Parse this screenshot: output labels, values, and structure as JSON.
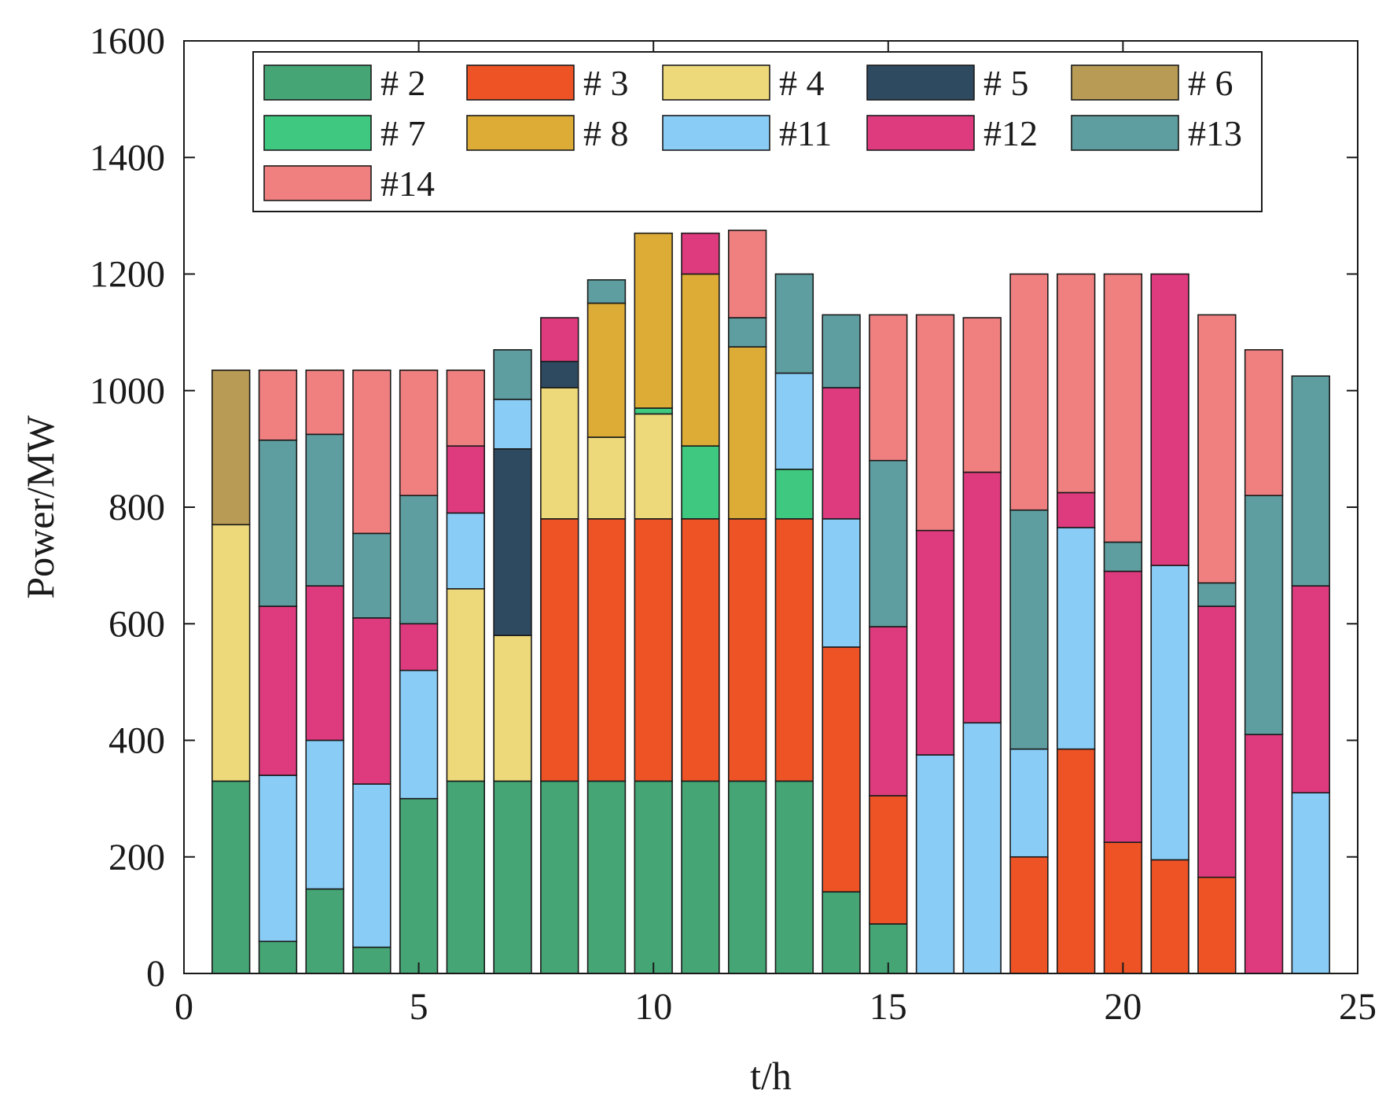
{
  "chart_data": {
    "type": "bar",
    "stacked": true,
    "xlabel": "t/h",
    "ylabel": "Power/MW",
    "xlim": [
      0,
      25
    ],
    "ylim": [
      0,
      1600
    ],
    "xticks": [
      0,
      5,
      10,
      15,
      20,
      25
    ],
    "yticks": [
      0,
      200,
      400,
      600,
      800,
      1000,
      1200,
      1400,
      1600
    ],
    "grid": false,
    "legend_position": "top",
    "x": [
      1,
      2,
      3,
      4,
      5,
      6,
      7,
      8,
      9,
      10,
      11,
      12,
      13,
      14,
      15,
      16,
      17,
      18,
      19,
      20,
      21,
      22,
      23,
      24
    ],
    "series": [
      {
        "name": "# 2",
        "color": "#45A575",
        "values": [
          330,
          55,
          145,
          45,
          300,
          330,
          330,
          330,
          330,
          330,
          330,
          330,
          330,
          140,
          85,
          0,
          0,
          0,
          0,
          0,
          0,
          0,
          0,
          0
        ]
      },
      {
        "name": "# 3",
        "color": "#EE5326",
        "values": [
          0,
          0,
          0,
          0,
          0,
          0,
          0,
          450,
          450,
          450,
          450,
          450,
          450,
          420,
          220,
          0,
          0,
          200,
          385,
          225,
          195,
          165,
          0,
          0
        ]
      },
      {
        "name": "# 4",
        "color": "#EDD87A",
        "values": [
          440,
          0,
          0,
          0,
          0,
          330,
          250,
          225,
          140,
          180,
          0,
          0,
          0,
          0,
          0,
          0,
          0,
          0,
          0,
          0,
          0,
          0,
          0,
          0
        ]
      },
      {
        "name": "# 5",
        "color": "#2E4A60",
        "values": [
          0,
          0,
          0,
          0,
          0,
          0,
          320,
          45,
          0,
          0,
          0,
          0,
          0,
          0,
          0,
          0,
          0,
          0,
          0,
          0,
          0,
          0,
          0,
          0
        ]
      },
      {
        "name": "# 6",
        "color": "#B89B54",
        "values": [
          265,
          0,
          0,
          0,
          0,
          0,
          0,
          0,
          0,
          0,
          0,
          0,
          0,
          0,
          0,
          0,
          0,
          0,
          0,
          0,
          0,
          0,
          0,
          0
        ]
      },
      {
        "name": "# 7",
        "color": "#3FC87F",
        "values": [
          0,
          0,
          0,
          0,
          0,
          0,
          0,
          0,
          0,
          10,
          125,
          0,
          85,
          0,
          0,
          0,
          0,
          0,
          0,
          0,
          0,
          0,
          0,
          0
        ]
      },
      {
        "name": "# 8",
        "color": "#DCAC36",
        "values": [
          0,
          0,
          0,
          0,
          0,
          0,
          0,
          0,
          230,
          300,
          295,
          295,
          0,
          0,
          0,
          0,
          0,
          0,
          0,
          0,
          0,
          0,
          0,
          0
        ]
      },
      {
        "name": "#11",
        "color": "#89CDF7",
        "values": [
          0,
          285,
          255,
          280,
          220,
          130,
          85,
          0,
          0,
          0,
          0,
          0,
          165,
          220,
          0,
          375,
          430,
          185,
          380,
          0,
          505,
          0,
          0,
          310
        ]
      },
      {
        "name": "#12",
        "color": "#DE3B7F",
        "values": [
          0,
          290,
          265,
          285,
          80,
          115,
          0,
          75,
          0,
          0,
          70,
          0,
          0,
          225,
          290,
          385,
          430,
          0,
          60,
          465,
          500,
          465,
          410,
          355
        ]
      },
      {
        "name": "#13",
        "color": "#5F9EA0",
        "values": [
          0,
          285,
          260,
          145,
          220,
          0,
          85,
          0,
          40,
          0,
          0,
          50,
          170,
          125,
          285,
          0,
          0,
          410,
          0,
          50,
          0,
          40,
          410,
          360
        ]
      },
      {
        "name": "#14",
        "color": "#F08080",
        "values": [
          0,
          120,
          110,
          280,
          215,
          130,
          0,
          0,
          0,
          0,
          0,
          150,
          0,
          0,
          250,
          370,
          265,
          405,
          375,
          460,
          0,
          460,
          250,
          0
        ]
      }
    ]
  }
}
